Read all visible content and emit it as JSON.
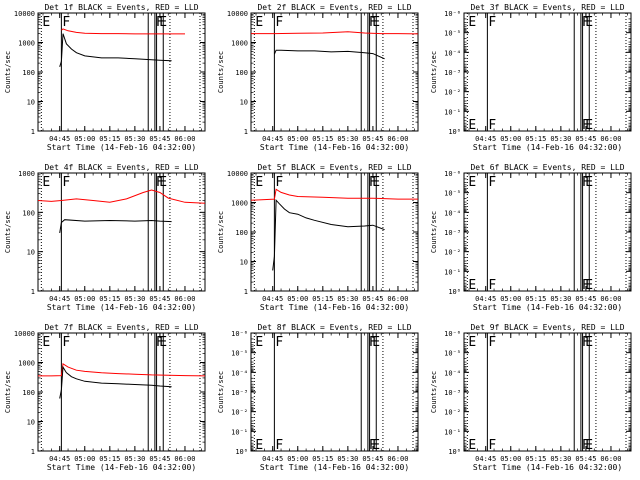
{
  "common": {
    "ylabel": "Counts/sec",
    "xlabel": "Start Time (14-Feb-16 04:32:00)",
    "xticks": [
      "04:45",
      "05:00",
      "05:15",
      "05:30",
      "05:45",
      "06:00"
    ]
  },
  "colors": {
    "events": "#000000",
    "lld": "#ff0000"
  },
  "chart_data": [
    {
      "type": "line",
      "title": "Det 1f BLACK = Events, RED = LLD",
      "xlabel": "Start Time (14-Feb-16 04:32:00)",
      "ylabel": "Counts/sec",
      "xlim": [
        "04:32",
        "06:12"
      ],
      "yscale": "log",
      "ylim": [
        1,
        10000
      ],
      "yticks": [
        "1",
        "10",
        "100",
        "1000",
        "10000"
      ],
      "flag_markers": [
        {
          "label": "E",
          "x": "04:34"
        },
        {
          "label": "F",
          "x": "04:46"
        },
        {
          "label": "F",
          "x": "05:42"
        },
        {
          "label": "E",
          "x": "05:44"
        }
      ],
      "solid_lines": [
        "04:46",
        "05:38",
        "05:42",
        "05:43",
        "05:47"
      ],
      "dotted_lines": [
        "04:34",
        "05:51",
        "06:09"
      ],
      "series": [
        {
          "color": "#ff0000",
          "x": [
            "04:46",
            "04:47",
            "04:50",
            "04:55",
            "05:00",
            "05:10",
            "05:20",
            "05:30",
            "05:40",
            "05:50",
            "06:00"
          ],
          "values": [
            2600,
            2900,
            2500,
            2200,
            2050,
            2000,
            2000,
            1950,
            1950,
            1950,
            1950
          ]
        },
        {
          "color": "#000000",
          "x": [
            "04:45",
            "04:46",
            "04:47",
            "04:49",
            "04:52",
            "04:55",
            "05:00",
            "05:10",
            "05:20",
            "05:30",
            "05:40",
            "05:45",
            "05:52"
          ],
          "values": [
            150,
            230,
            2000,
            900,
            600,
            450,
            350,
            300,
            300,
            280,
            260,
            250,
            240
          ]
        }
      ]
    },
    {
      "type": "line",
      "title": "Det 2f BLACK = Events, RED = LLD",
      "xlabel": "Start Time (14-Feb-16 04:32:00)",
      "ylabel": "Counts/sec",
      "xlim": [
        "04:32",
        "06:12"
      ],
      "yscale": "log",
      "ylim": [
        1,
        10000
      ],
      "yticks": [
        "1",
        "10",
        "100",
        "1000",
        "10000"
      ],
      "flag_markers": [
        {
          "label": "E",
          "x": "04:34"
        },
        {
          "label": "F",
          "x": "04:46"
        },
        {
          "label": "F",
          "x": "05:42"
        },
        {
          "label": "E",
          "x": "05:44"
        }
      ],
      "solid_lines": [
        "04:46",
        "05:38",
        "05:42",
        "05:43",
        "05:47"
      ],
      "dotted_lines": [
        "04:34",
        "05:51",
        "06:09"
      ],
      "series": [
        {
          "color": "#ff0000",
          "x": [
            "04:32",
            "04:46",
            "05:00",
            "05:15",
            "05:30",
            "05:40",
            "05:50",
            "06:00",
            "06:12"
          ],
          "values": [
            2000,
            2000,
            2050,
            2100,
            2300,
            2100,
            2000,
            2000,
            1950
          ]
        },
        {
          "color": "#000000",
          "x": [
            "04:46",
            "04:47",
            "04:50",
            "05:00",
            "05:10",
            "05:20",
            "05:30",
            "05:40",
            "05:45",
            "05:52"
          ],
          "values": [
            400,
            550,
            550,
            520,
            520,
            480,
            500,
            450,
            420,
            280
          ]
        }
      ]
    },
    {
      "type": "line",
      "title": "Det 3f BLACK = Events, RED = LLD",
      "xlabel": "Start Time (14-Feb-16 04:32:00)",
      "ylabel": "Counts/sec",
      "xlim": [
        "04:32",
        "06:12"
      ],
      "yscale": "log",
      "ylim": [
        1,
        1e-06
      ],
      "yticks": [
        "10⁰",
        "10⁻¹",
        "10⁻²",
        "10⁻³",
        "10⁻⁴",
        "10⁻⁵",
        "10⁻⁶"
      ],
      "flag_markers": [
        {
          "label": "E",
          "x": "04:34"
        },
        {
          "label": "F",
          "x": "04:46"
        },
        {
          "label": "F",
          "x": "05:42"
        },
        {
          "label": "E",
          "x": "05:44"
        }
      ],
      "solid_lines": [
        "04:46",
        "05:38",
        "05:42",
        "05:43",
        "05:47"
      ],
      "dotted_lines": [
        "04:34",
        "05:51",
        "06:09"
      ],
      "series": []
    },
    {
      "type": "line",
      "title": "Det 4f BLACK = Events, RED = LLD",
      "xlabel": "Start Time (14-Feb-16 04:32:00)",
      "ylabel": "Counts/sec",
      "xlim": [
        "04:32",
        "06:12"
      ],
      "yscale": "log",
      "ylim": [
        1,
        1000
      ],
      "yticks": [
        "1",
        "10",
        "100",
        "1000"
      ],
      "flag_markers": [
        {
          "label": "E",
          "x": "04:34"
        },
        {
          "label": "F",
          "x": "04:46"
        },
        {
          "label": "F",
          "x": "05:42"
        },
        {
          "label": "E",
          "x": "05:44"
        }
      ],
      "solid_lines": [
        "04:46",
        "05:38",
        "05:42",
        "05:43",
        "05:47"
      ],
      "dotted_lines": [
        "04:34",
        "05:51",
        "06:09"
      ],
      "series": [
        {
          "color": "#ff0000",
          "x": [
            "04:32",
            "04:40",
            "04:46",
            "04:55",
            "05:05",
            "05:15",
            "05:25",
            "05:35",
            "05:40",
            "05:45",
            "05:50",
            "06:00",
            "06:12"
          ],
          "values": [
            200,
            190,
            200,
            220,
            200,
            180,
            220,
            320,
            370,
            320,
            230,
            180,
            170
          ]
        },
        {
          "color": "#000000",
          "x": [
            "04:45",
            "04:46",
            "04:48",
            "05:00",
            "05:15",
            "05:30",
            "05:40",
            "05:45",
            "05:52"
          ],
          "values": [
            30,
            55,
            65,
            60,
            62,
            60,
            62,
            60,
            58
          ]
        }
      ]
    },
    {
      "type": "line",
      "title": "Det 5f BLACK = Events, RED = LLD",
      "xlabel": "Start Time (14-Feb-16 04:32:00)",
      "ylabel": "Counts/sec",
      "xlim": [
        "04:32",
        "06:12"
      ],
      "yscale": "log",
      "ylim": [
        1,
        10000
      ],
      "yticks": [
        "1",
        "10",
        "100",
        "1000",
        "10000"
      ],
      "flag_markers": [
        {
          "label": "E",
          "x": "04:34"
        },
        {
          "label": "F",
          "x": "04:46"
        },
        {
          "label": "F",
          "x": "05:42"
        },
        {
          "label": "E",
          "x": "05:44"
        }
      ],
      "solid_lines": [
        "04:46",
        "05:38",
        "05:42",
        "05:43",
        "05:47"
      ],
      "dotted_lines": [
        "04:34",
        "05:51",
        "06:09"
      ],
      "series": [
        {
          "color": "#ff0000",
          "x": [
            "04:32",
            "04:40",
            "04:46",
            "04:47",
            "04:50",
            "04:55",
            "05:00",
            "05:15",
            "05:30",
            "05:45",
            "06:00",
            "06:12"
          ],
          "values": [
            1200,
            1250,
            1300,
            2800,
            2200,
            1800,
            1600,
            1500,
            1400,
            1400,
            1300,
            1300
          ]
        },
        {
          "color": "#000000",
          "x": [
            "04:45",
            "04:46",
            "04:47",
            "04:49",
            "04:52",
            "04:55",
            "05:00",
            "05:05",
            "05:10",
            "05:20",
            "05:30",
            "05:40",
            "05:45",
            "05:52"
          ],
          "values": [
            5,
            15,
            1200,
            900,
            600,
            450,
            400,
            300,
            250,
            180,
            150,
            160,
            170,
            120
          ]
        }
      ]
    },
    {
      "type": "line",
      "title": "Det 6f BLACK = Events, RED = LLD",
      "xlabel": "Start Time (14-Feb-16 04:32:00)",
      "ylabel": "Counts/sec",
      "xlim": [
        "04:32",
        "06:12"
      ],
      "yscale": "log",
      "ylim": [
        1,
        1e-06
      ],
      "yticks": [
        "10⁰",
        "10⁻¹",
        "10⁻²",
        "10⁻³",
        "10⁻⁴",
        "10⁻⁵",
        "10⁻⁶"
      ],
      "flag_markers": [
        {
          "label": "E",
          "x": "04:34"
        },
        {
          "label": "F",
          "x": "04:46"
        },
        {
          "label": "F",
          "x": "05:42"
        },
        {
          "label": "E",
          "x": "05:44"
        }
      ],
      "solid_lines": [
        "04:46",
        "05:38",
        "05:42",
        "05:43",
        "05:47"
      ],
      "dotted_lines": [
        "04:34",
        "05:51",
        "06:09"
      ],
      "series": []
    },
    {
      "type": "line",
      "title": "Det 7f BLACK = Events, RED = LLD",
      "xlabel": "Start Time (14-Feb-16 04:32:00)",
      "ylabel": "Counts/sec",
      "xlim": [
        "04:32",
        "06:12"
      ],
      "yscale": "log",
      "ylim": [
        1,
        10000
      ],
      "yticks": [
        "1",
        "10",
        "100",
        "1000",
        "10000"
      ],
      "flag_markers": [
        {
          "label": "E",
          "x": "04:34"
        },
        {
          "label": "F",
          "x": "04:46"
        },
        {
          "label": "F",
          "x": "05:42"
        },
        {
          "label": "E",
          "x": "05:44"
        }
      ],
      "solid_lines": [
        "04:46",
        "05:38",
        "05:42",
        "05:43",
        "05:47"
      ],
      "dotted_lines": [
        "04:34",
        "05:51",
        "06:09"
      ],
      "series": [
        {
          "color": "#ff0000",
          "x": [
            "04:32",
            "04:40",
            "04:46",
            "04:47",
            "04:50",
            "04:55",
            "05:00",
            "05:10",
            "05:20",
            "05:30",
            "05:40",
            "05:50",
            "06:00",
            "06:12"
          ],
          "values": [
            350,
            350,
            360,
            900,
            700,
            550,
            500,
            450,
            420,
            400,
            380,
            370,
            360,
            350
          ]
        },
        {
          "color": "#000000",
          "x": [
            "04:45",
            "04:46",
            "04:47",
            "04:49",
            "04:52",
            "04:55",
            "05:00",
            "05:10",
            "05:20",
            "05:30",
            "05:40",
            "05:45",
            "05:52"
          ],
          "values": [
            60,
            120,
            700,
            450,
            330,
            280,
            230,
            200,
            190,
            180,
            170,
            160,
            150
          ]
        }
      ]
    },
    {
      "type": "line",
      "title": "Det 8f BLACK = Events, RED = LLD",
      "xlabel": "Start Time (14-Feb-16 04:32:00)",
      "ylabel": "Counts/sec",
      "xlim": [
        "04:32",
        "06:12"
      ],
      "yscale": "log",
      "ylim": [
        1,
        1e-06
      ],
      "yticks": [
        "10⁰",
        "10⁻¹",
        "10⁻²",
        "10⁻³",
        "10⁻⁴",
        "10⁻⁵",
        "10⁻⁶"
      ],
      "flag_markers": [
        {
          "label": "E",
          "x": "04:34"
        },
        {
          "label": "F",
          "x": "04:46"
        },
        {
          "label": "F",
          "x": "05:42"
        },
        {
          "label": "E",
          "x": "05:44"
        }
      ],
      "solid_lines": [
        "04:46",
        "05:38",
        "05:42",
        "05:43",
        "05:47"
      ],
      "dotted_lines": [
        "04:34",
        "05:51",
        "06:09"
      ],
      "series": []
    },
    {
      "type": "line",
      "title": "Det 9f BLACK = Events, RED = LLD",
      "xlabel": "Start Time (14-Feb-16 04:32:00)",
      "ylabel": "Counts/sec",
      "xlim": [
        "04:32",
        "06:12"
      ],
      "yscale": "log",
      "ylim": [
        1,
        1e-06
      ],
      "yticks": [
        "10⁰",
        "10⁻¹",
        "10⁻²",
        "10⁻³",
        "10⁻⁴",
        "10⁻⁵",
        "10⁻⁶"
      ],
      "flag_markers": [
        {
          "label": "E",
          "x": "04:34"
        },
        {
          "label": "F",
          "x": "04:46"
        },
        {
          "label": "F",
          "x": "05:42"
        },
        {
          "label": "E",
          "x": "05:44"
        }
      ],
      "solid_lines": [
        "04:46",
        "05:38",
        "05:42",
        "05:43",
        "05:47"
      ],
      "dotted_lines": [
        "04:34",
        "05:51",
        "06:09"
      ],
      "series": []
    }
  ]
}
